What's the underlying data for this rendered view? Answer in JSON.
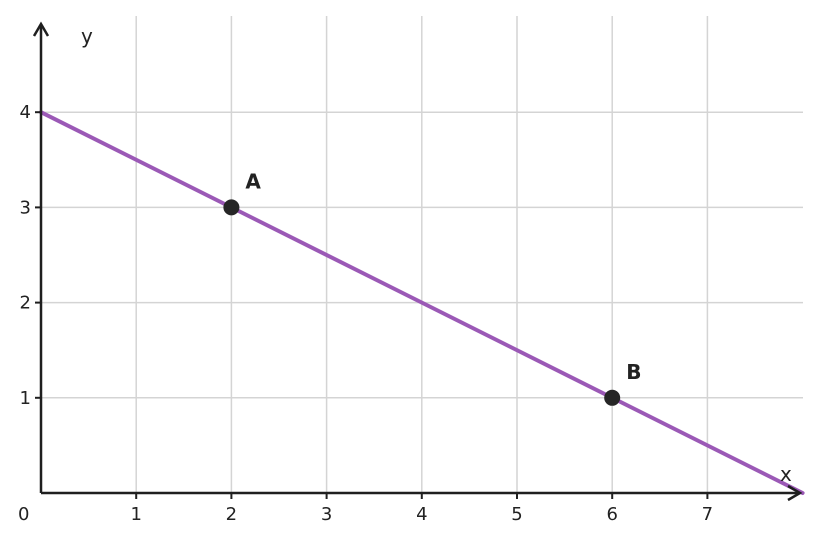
{
  "chart_data": {
    "type": "line",
    "xlabel": "x",
    "ylabel": "y",
    "xlim": [
      0,
      8
    ],
    "ylim": [
      0,
      4.8
    ],
    "x_ticks": [
      "1",
      "2",
      "3",
      "4",
      "5",
      "6",
      "7"
    ],
    "y_ticks": [
      "1",
      "2",
      "3",
      "4"
    ],
    "origin_label": "0",
    "grid": true,
    "line": {
      "x": [
        0,
        8
      ],
      "y": [
        4,
        0
      ],
      "color": "#9b59b6"
    },
    "points": [
      {
        "label": "A",
        "x": 2,
        "y": 3
      },
      {
        "label": "B",
        "x": 6,
        "y": 1
      }
    ],
    "point_color": "#262626"
  }
}
